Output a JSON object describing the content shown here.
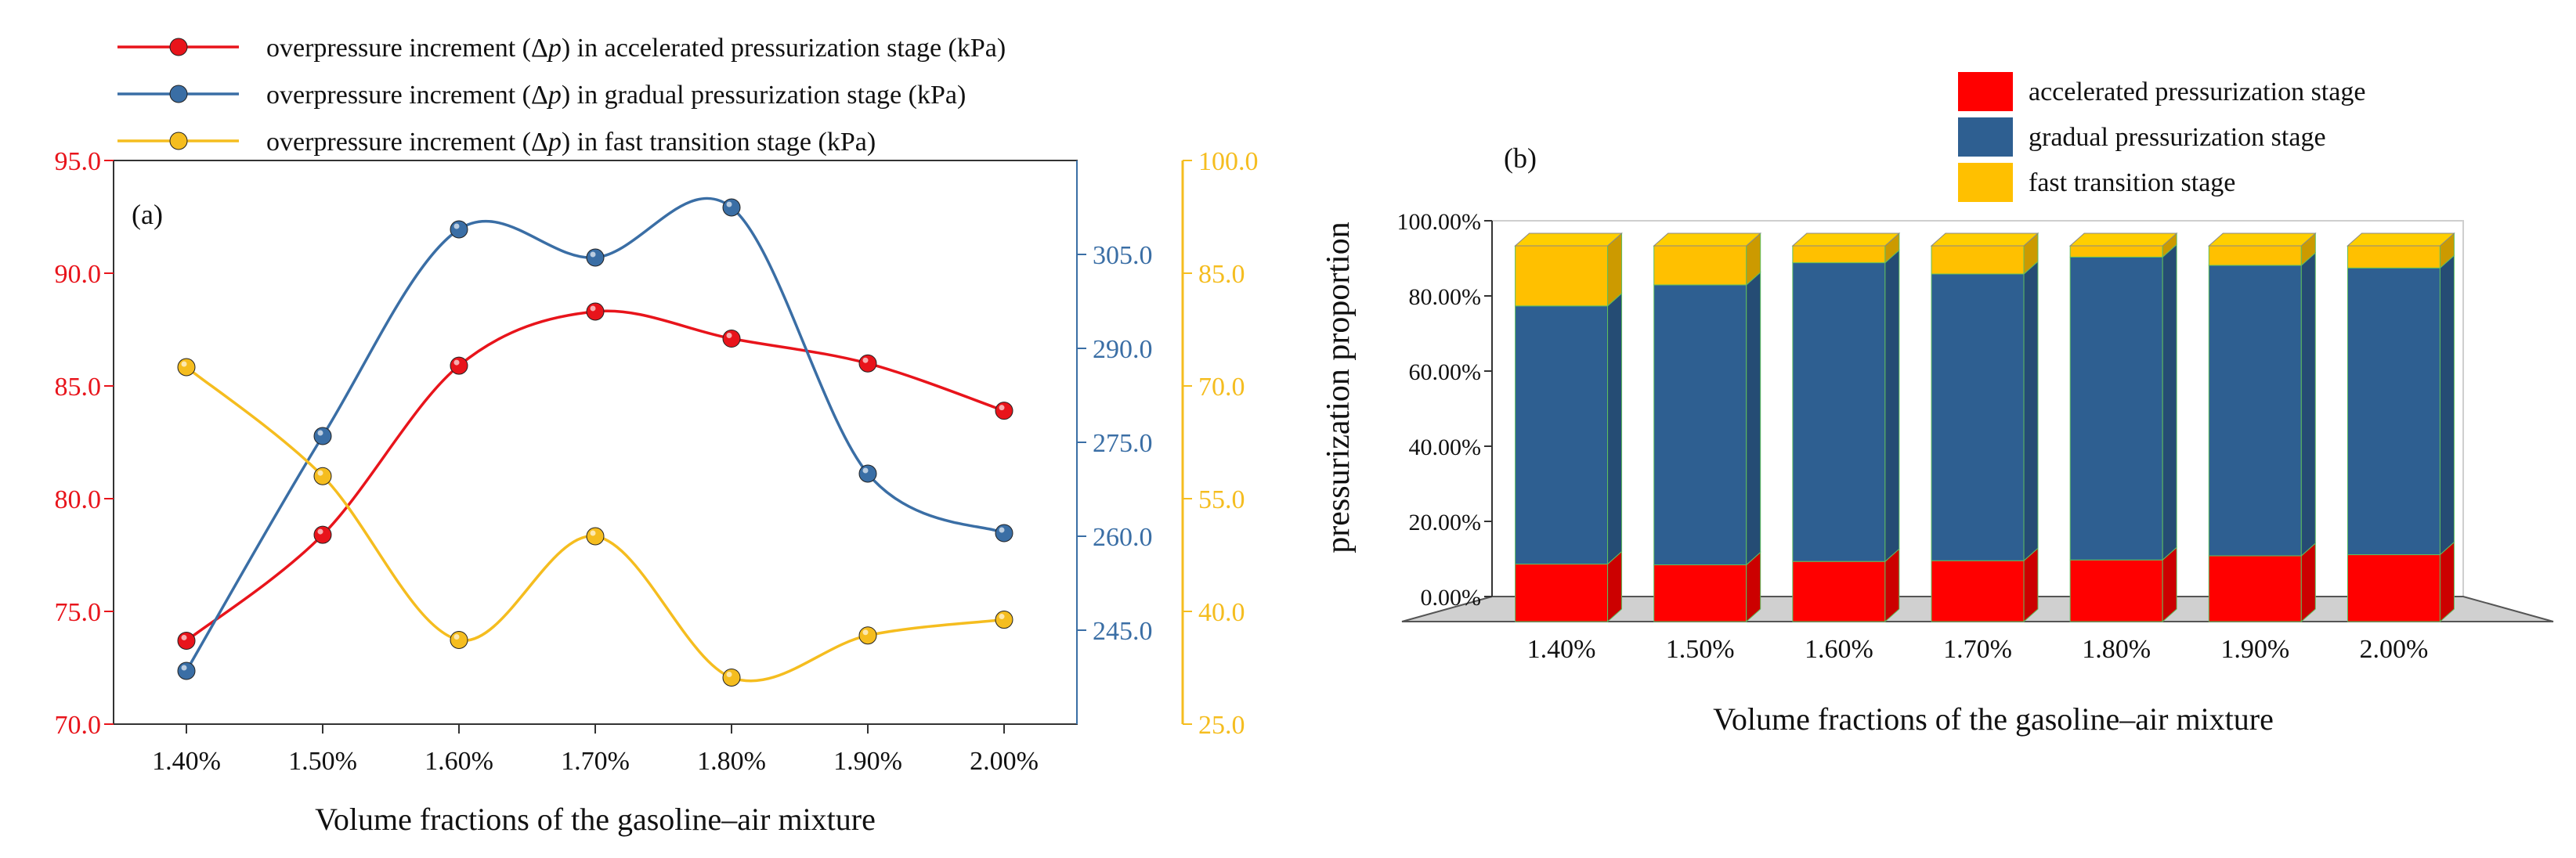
{
  "chart_data": [
    {
      "panel": "(a)",
      "type": "line",
      "xlabel": "Volume fractions of the gasoline–air mixture",
      "categories": [
        "1.40%",
        "1.50%",
        "1.60%",
        "1.70%",
        "1.80%",
        "1.90%",
        "2.00%"
      ],
      "series": [
        {
          "name": "overpressure increment (Δp) in accelerated pressurization stage (kPa)",
          "legend_prefix": "overpressure increment (",
          "legend_delta": "Δ",
          "legend_var": "p",
          "legend_suffix": ") in accelerated pressurization stage (kPa)",
          "color": "#e8141b",
          "axis": "left",
          "values": [
            73.7,
            78.4,
            85.9,
            88.3,
            87.1,
            86.0,
            83.9
          ]
        },
        {
          "name": "overpressure increment (Δp) in gradual pressurization stage (kPa)",
          "legend_prefix": "overpressure increment (",
          "legend_delta": "Δ",
          "legend_var": "p",
          "legend_suffix": ") in gradual pressurization stage (kPa)",
          "color": "#3a6ea5",
          "axis": "right-inner",
          "values": [
            238.5,
            276.0,
            309.0,
            304.5,
            312.5,
            270.0,
            260.5
          ]
        },
        {
          "name": "overpressure increment (Δp) in fast transition stage (kPa)",
          "legend_prefix": "overpressure increment (",
          "legend_delta": "Δ",
          "legend_var": "p",
          "legend_suffix": ") in fast transition stage (kPa)",
          "color": "#f5bd1f",
          "axis": "right-outer",
          "values": [
            72.5,
            58.0,
            36.2,
            50.0,
            31.2,
            36.8,
            38.9
          ]
        }
      ],
      "axes": {
        "left": {
          "min": 70,
          "max": 95,
          "ticks": [
            "70.0",
            "75.0",
            "80.0",
            "85.0",
            "90.0",
            "95.0"
          ],
          "color": "#e8141b"
        },
        "right_inner": {
          "min": 230,
          "max": 320,
          "ticks": [
            "245.0",
            "260.0",
            "275.0",
            "290.0",
            "305.0"
          ],
          "color": "#3a6ea5"
        },
        "right_outer": {
          "min": 25,
          "max": 100,
          "ticks": [
            "25.0",
            "40.0",
            "55.0",
            "70.0",
            "85.0",
            "100.0"
          ],
          "color": "#f5bd1f"
        }
      }
    },
    {
      "panel": "(b)",
      "type": "bar",
      "stacked": true,
      "xlabel": "Volume fractions of the gasoline–air mixture",
      "ylabel": "pressurization proportion",
      "ylim": [
        0,
        100
      ],
      "yticks": [
        "0.00%",
        "20.00%",
        "40.00%",
        "60.00%",
        "80.00%",
        "100.00%"
      ],
      "categories": [
        "1.40%",
        "1.50%",
        "1.60%",
        "1.70%",
        "1.80%",
        "1.90%",
        "2.00%"
      ],
      "series": [
        {
          "name": "accelerated pressurization stage",
          "color": "#ff0000",
          "values": [
            15.3,
            15.1,
            16.0,
            16.2,
            16.4,
            17.5,
            17.8
          ]
        },
        {
          "name": "gradual pressurization stage",
          "color": "#2e5f91",
          "values": [
            68.7,
            74.5,
            79.5,
            76.3,
            80.6,
            77.3,
            76.3
          ]
        },
        {
          "name": "fast transition stage",
          "color": "#ffc000",
          "values": [
            16.0,
            10.4,
            4.5,
            7.5,
            3.0,
            5.2,
            5.9
          ]
        }
      ]
    }
  ]
}
